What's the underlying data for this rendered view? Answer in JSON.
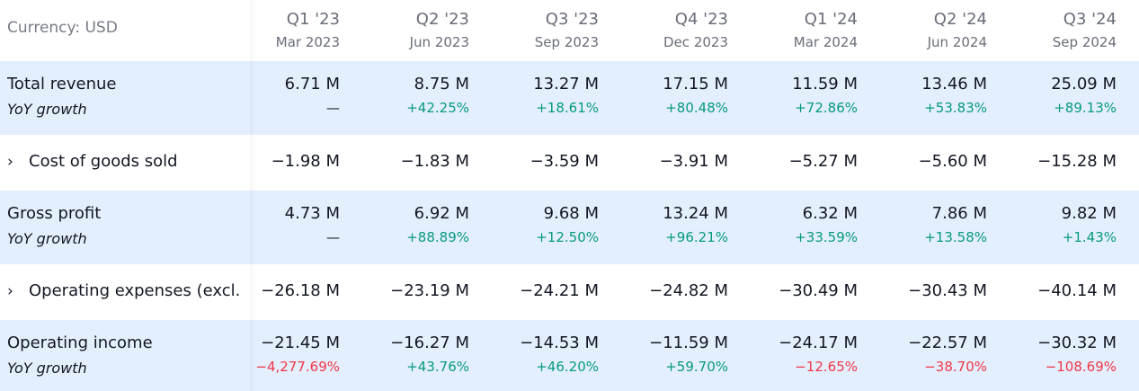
{
  "currency_label": "Currency: USD",
  "periods": [
    {
      "q": "Q1 '23",
      "d": "Mar 2023"
    },
    {
      "q": "Q2 '23",
      "d": "Jun 2023"
    },
    {
      "q": "Q3 '23",
      "d": "Sep 2023"
    },
    {
      "q": "Q4 '23",
      "d": "Dec 2023"
    },
    {
      "q": "Q1 '24",
      "d": "Mar 2024"
    },
    {
      "q": "Q2 '24",
      "d": "Jun 2024"
    },
    {
      "q": "Q3 '24",
      "d": "Sep 2024"
    }
  ],
  "rows": [
    {
      "label": "Total revenue",
      "sublabel": "YoY growth",
      "highlight": true,
      "expandable": false,
      "values": [
        "6.71 M",
        "8.75 M",
        "13.27 M",
        "17.15 M",
        "11.59 M",
        "13.46 M",
        "25.09 M"
      ],
      "growth": [
        "—",
        "+42.25%",
        "+18.61%",
        "+80.48%",
        "+72.86%",
        "+53.83%",
        "+89.13%"
      ]
    },
    {
      "label": "Cost of goods sold",
      "highlight": false,
      "expandable": true,
      "values": [
        "−1.98 M",
        "−1.83 M",
        "−3.59 M",
        "−3.91 M",
        "−5.27 M",
        "−5.60 M",
        "−15.28 M"
      ]
    },
    {
      "label": "Gross profit",
      "sublabel": "YoY growth",
      "highlight": true,
      "expandable": false,
      "values": [
        "4.73 M",
        "6.92 M",
        "9.68 M",
        "13.24 M",
        "6.32 M",
        "7.86 M",
        "9.82 M"
      ],
      "growth": [
        "—",
        "+88.89%",
        "+12.50%",
        "+96.21%",
        "+33.59%",
        "+13.58%",
        "+1.43%"
      ]
    },
    {
      "label": "Operating expenses (excl.",
      "highlight": false,
      "expandable": true,
      "values": [
        "−26.18 M",
        "−23.19 M",
        "−24.21 M",
        "−24.82 M",
        "−30.49 M",
        "−30.43 M",
        "−40.14 M"
      ]
    },
    {
      "label": "Operating income",
      "sublabel": "YoY growth",
      "highlight": true,
      "expandable": false,
      "values": [
        "−21.45 M",
        "−16.27 M",
        "−14.53 M",
        "−11.59 M",
        "−24.17 M",
        "−22.57 M",
        "−30.32 M"
      ],
      "growth": [
        "−4,277.69%",
        "+43.76%",
        "+46.20%",
        "+59.70%",
        "−12.65%",
        "−38.70%",
        "−108.69%"
      ]
    }
  ],
  "colors": {
    "positive": "#089981",
    "negative": "#f23645",
    "highlight_bg": "#e3effd",
    "chevron_glyph": "›"
  }
}
